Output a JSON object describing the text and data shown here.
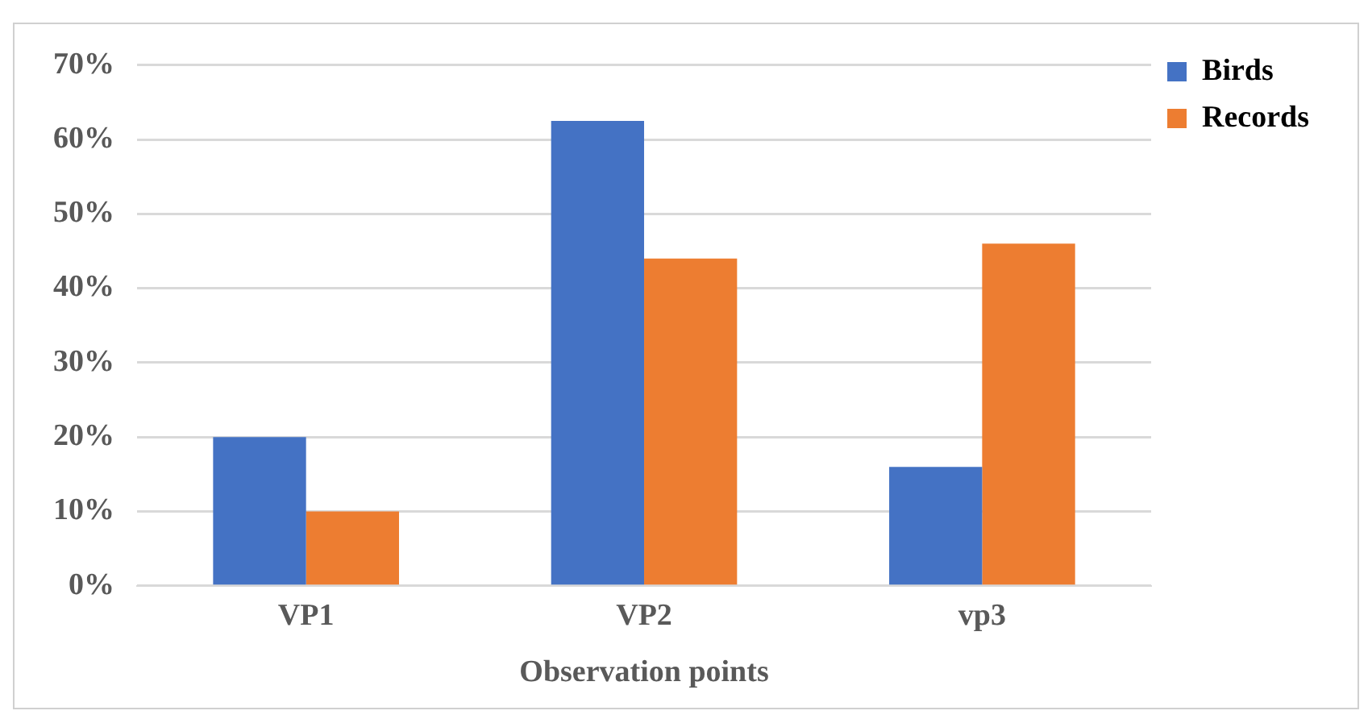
{
  "chart_data": {
    "type": "bar",
    "xlabel": "Observation points",
    "categories": [
      "VP1",
      "VP2",
      "vp3"
    ],
    "series": [
      {
        "name": "Birds",
        "color": "#4472c4",
        "values": [
          20,
          62.5,
          16
        ]
      },
      {
        "name": "Records",
        "color": "#ed7d31",
        "values": [
          10,
          44,
          46
        ]
      }
    ],
    "ylim": [
      0,
      70
    ],
    "yticks": [
      {
        "value": 0,
        "label": "0%"
      },
      {
        "value": 10,
        "label": "10%"
      },
      {
        "value": 20,
        "label": "20%"
      },
      {
        "value": 30,
        "label": "30%"
      },
      {
        "value": 40,
        "label": "40%"
      },
      {
        "value": 50,
        "label": "50%"
      },
      {
        "value": 60,
        "label": "60%"
      },
      {
        "value": 70,
        "label": "70%"
      }
    ],
    "grid": "y",
    "legend": "top right"
  }
}
